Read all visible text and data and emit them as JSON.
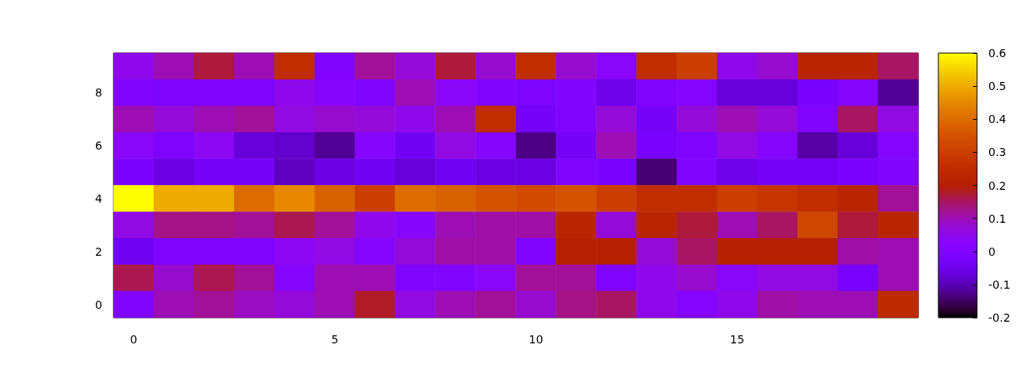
{
  "chart_data": {
    "type": "heatmap",
    "categories": [
      "0",
      null,
      null,
      null,
      null,
      "5",
      null,
      null,
      null,
      null,
      "10",
      null,
      null,
      null,
      null,
      "15",
      null,
      null,
      null,
      null
    ],
    "y_categories": [
      null,
      "8",
      null,
      "6",
      null,
      "4",
      null,
      "2",
      null,
      "0"
    ],
    "cells": [
      [
        0.05,
        0.1,
        0.17,
        0.1,
        0.25,
        0.0,
        0.12,
        0.07,
        0.17,
        0.08,
        0.25,
        0.08,
        0.03,
        0.25,
        0.3,
        0.05,
        0.08,
        0.22,
        0.22,
        0.15
      ],
      [
        0.0,
        -0.01,
        -0.01,
        -0.01,
        0.05,
        0.02,
        0.0,
        0.1,
        0.03,
        0.0,
        -0.01,
        0.0,
        -0.05,
        0.0,
        0.01,
        -0.07,
        -0.07,
        -0.02,
        0.02,
        -0.12
      ],
      [
        0.1,
        0.07,
        0.1,
        0.12,
        0.06,
        0.08,
        0.07,
        0.05,
        0.1,
        0.25,
        -0.03,
        0.0,
        0.07,
        -0.03,
        0.07,
        0.1,
        0.07,
        0.0,
        0.15,
        0.06
      ],
      [
        0.03,
        -0.01,
        0.04,
        -0.07,
        -0.08,
        -0.12,
        0.02,
        -0.04,
        0.06,
        0.02,
        -0.13,
        -0.03,
        0.1,
        -0.02,
        -0.01,
        0.06,
        0.02,
        -0.11,
        -0.07,
        0.01
      ],
      [
        -0.02,
        -0.06,
        -0.03,
        -0.03,
        -0.09,
        -0.06,
        -0.04,
        -0.07,
        -0.04,
        -0.06,
        -0.06,
        -0.01,
        -0.02,
        -0.14,
        0.0,
        -0.05,
        -0.03,
        -0.03,
        -0.02,
        0.0
      ],
      [
        0.6,
        0.5,
        0.5,
        0.4,
        0.45,
        0.38,
        0.3,
        0.4,
        0.38,
        0.35,
        0.33,
        0.35,
        0.3,
        0.25,
        0.25,
        0.3,
        0.28,
        0.25,
        0.22,
        0.12
      ],
      [
        0.06,
        0.13,
        0.13,
        0.12,
        0.16,
        0.12,
        0.05,
        0.02,
        0.1,
        0.11,
        0.11,
        0.22,
        0.07,
        0.22,
        0.17,
        0.1,
        0.15,
        0.32,
        0.17,
        0.22
      ],
      [
        -0.04,
        -0.01,
        -0.01,
        -0.01,
        0.04,
        0.06,
        0.01,
        0.07,
        0.11,
        0.11,
        0.0,
        0.2,
        0.2,
        0.07,
        0.15,
        0.2,
        0.2,
        0.2,
        0.11,
        0.1
      ],
      [
        0.16,
        0.08,
        0.16,
        0.12,
        0.02,
        0.1,
        0.1,
        0.0,
        0.0,
        0.03,
        0.12,
        0.12,
        0.0,
        0.05,
        0.08,
        0.03,
        0.06,
        0.06,
        -0.02,
        0.1
      ],
      [
        0.0,
        0.1,
        0.12,
        0.09,
        0.07,
        0.1,
        0.18,
        0.06,
        0.1,
        0.12,
        0.08,
        0.13,
        0.15,
        0.05,
        0.01,
        0.05,
        0.11,
        0.1,
        0.1,
        0.24
      ]
    ],
    "clim": [
      -0.2,
      0.6
    ],
    "cticks": [
      -0.2,
      -0.1,
      0,
      0.1,
      0.2,
      0.3,
      0.4,
      0.5,
      0.6
    ]
  }
}
